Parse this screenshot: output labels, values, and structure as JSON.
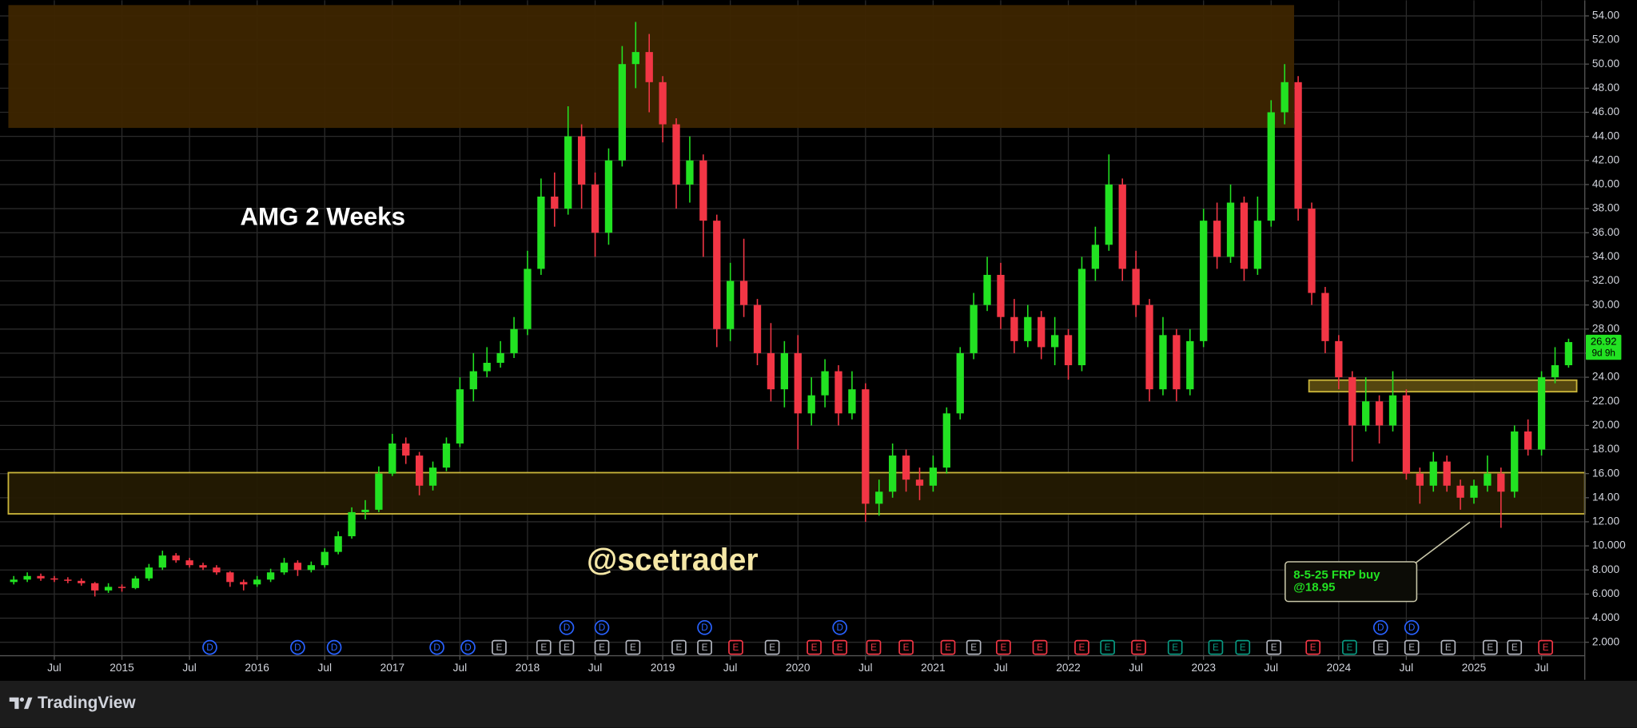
{
  "chart_data": {
    "type": "candlestick",
    "title": "AMG 2 Weeks",
    "watermark": "@scetrader",
    "x": [
      2014.2,
      2014.3,
      2014.4,
      2014.5,
      2014.6,
      2014.7,
      2014.8,
      2014.9,
      2015.0,
      2015.1,
      2015.2,
      2015.3,
      2015.4,
      2015.5,
      2015.6,
      2015.7,
      2015.8,
      2015.9,
      2016.0,
      2016.1,
      2016.2,
      2016.3,
      2016.4,
      2016.5,
      2016.6,
      2016.7,
      2016.8,
      2016.9,
      2017.0,
      2017.1,
      2017.2,
      2017.3,
      2017.4,
      2017.5,
      2017.6,
      2017.7,
      2017.8,
      2017.9,
      2018.0,
      2018.1,
      2018.2,
      2018.3,
      2018.4,
      2018.5,
      2018.6,
      2018.7,
      2018.8,
      2018.9,
      2019.0,
      2019.1,
      2019.2,
      2019.3,
      2019.4,
      2019.5,
      2019.6,
      2019.7,
      2019.8,
      2019.9,
      2020.0,
      2020.1,
      2020.2,
      2020.3,
      2020.4,
      2020.5,
      2020.6,
      2020.7,
      2020.8,
      2020.9,
      2021.0,
      2021.1,
      2021.2,
      2021.3,
      2021.4,
      2021.5,
      2021.6,
      2021.7,
      2021.8,
      2021.9,
      2022.0,
      2022.1,
      2022.2,
      2022.3,
      2022.4,
      2022.5,
      2022.6,
      2022.7,
      2022.8,
      2022.9,
      2023.0,
      2023.1,
      2023.2,
      2023.3,
      2023.4,
      2023.5,
      2023.6,
      2023.7,
      2023.8,
      2023.9,
      2024.0,
      2024.1,
      2024.2,
      2024.3,
      2024.4,
      2024.5,
      2024.6,
      2024.7,
      2024.8,
      2024.9,
      2025.0,
      2025.1,
      2025.2,
      2025.3,
      2025.4,
      2025.5,
      2025.6,
      2025.7
    ],
    "open": [
      7.0,
      7.2,
      7.5,
      7.3,
      7.2,
      7.1,
      6.9,
      6.3,
      6.6,
      6.5,
      7.3,
      8.2,
      9.2,
      8.8,
      8.4,
      8.2,
      7.8,
      7.0,
      6.8,
      7.2,
      7.8,
      8.6,
      8.0,
      8.4,
      9.5,
      10.8,
      12.8,
      13.0,
      16.0,
      18.5,
      17.5,
      15.0,
      16.5,
      18.5,
      23.0,
      24.5,
      25.2,
      26.0,
      28.0,
      33.0,
      39.0,
      38.0,
      44.0,
      40.0,
      36.0,
      42.0,
      50.0,
      51.0,
      48.5,
      45.0,
      40.0,
      42.0,
      37.0,
      28.0,
      32.0,
      30.0,
      26.0,
      23.0,
      26.0,
      21.0,
      22.5,
      24.5,
      21.0,
      23.0,
      13.5,
      14.5,
      17.5,
      15.5,
      15.0,
      16.5,
      21.0,
      26.0,
      30.0,
      32.5,
      29.0,
      27.0,
      29.0,
      26.5,
      27.5,
      25.0,
      33.0,
      35.0,
      40.0,
      33.0,
      30.0,
      23.0,
      27.5,
      23.0,
      27.0,
      37.0,
      34.0,
      38.5,
      33.0,
      37.0,
      46.0,
      48.5,
      38.0,
      31.0,
      27.0,
      24.0,
      20.0,
      22.0,
      20.0,
      22.5,
      16.0,
      15.0,
      17.0,
      15.0,
      14.0,
      15.0,
      16.0,
      14.5,
      19.5,
      18.0,
      24.0,
      25.0
    ],
    "high": [
      7.5,
      7.8,
      7.7,
      7.5,
      7.4,
      7.3,
      7.0,
      6.9,
      6.8,
      7.5,
      8.5,
      9.6,
      9.4,
      9.0,
      8.6,
      8.4,
      7.9,
      7.2,
      7.5,
      8.1,
      9.0,
      8.8,
      8.7,
      9.8,
      11.2,
      13.2,
      13.8,
      16.6,
      19.3,
      19.0,
      17.8,
      17.0,
      19.0,
      24.0,
      26.0,
      26.5,
      27.0,
      29.0,
      34.5,
      40.5,
      41.0,
      46.5,
      45.0,
      41.0,
      43.0,
      51.5,
      53.5,
      52.5,
      49.0,
      45.5,
      44.0,
      42.5,
      37.5,
      33.5,
      35.5,
      30.5,
      28.5,
      27.0,
      27.5,
      24.0,
      25.5,
      25.0,
      24.5,
      23.5,
      15.5,
      18.5,
      18.0,
      16.5,
      17.5,
      21.5,
      26.5,
      31.0,
      34.0,
      33.5,
      30.5,
      30.0,
      29.5,
      29.0,
      28.0,
      34.0,
      36.5,
      42.5,
      40.5,
      34.5,
      30.5,
      29.0,
      28.0,
      28.0,
      38.0,
      38.5,
      40.0,
      39.0,
      39.0,
      47.0,
      50.0,
      49.0,
      38.5,
      31.5,
      27.5,
      24.5,
      24.0,
      22.5,
      24.5,
      23.0,
      16.5,
      17.8,
      17.5,
      15.5,
      15.5,
      17.5,
      16.5,
      20.0,
      20.5,
      24.5,
      26.5,
      27.2
    ],
    "low": [
      6.8,
      7.0,
      7.1,
      7.0,
      6.9,
      6.7,
      5.8,
      6.1,
      6.2,
      6.4,
      7.1,
      8.0,
      8.6,
      8.2,
      8.0,
      7.6,
      6.6,
      6.3,
      6.6,
      7.0,
      7.6,
      7.5,
      7.8,
      8.2,
      9.3,
      10.6,
      12.2,
      12.8,
      15.8,
      16.8,
      14.2,
      14.6,
      16.2,
      18.2,
      22.0,
      24.0,
      24.8,
      25.6,
      27.5,
      32.5,
      36.5,
      37.5,
      38.0,
      34.0,
      35.0,
      41.5,
      48.0,
      46.0,
      43.5,
      38.0,
      38.5,
      34.0,
      26.5,
      27.0,
      29.0,
      25.0,
      22.0,
      21.5,
      18.0,
      20.0,
      21.5,
      20.0,
      20.5,
      12.0,
      12.5,
      14.0,
      14.5,
      13.8,
      14.5,
      16.0,
      20.5,
      25.5,
      29.5,
      28.0,
      26.0,
      26.5,
      25.5,
      25.0,
      23.8,
      24.5,
      32.0,
      34.5,
      32.0,
      29.0,
      22.0,
      22.5,
      22.0,
      22.5,
      26.5,
      33.0,
      33.5,
      32.0,
      32.5,
      36.5,
      45.0,
      37.0,
      30.0,
      26.0,
      23.0,
      17.0,
      19.5,
      18.5,
      19.5,
      15.5,
      13.5,
      14.5,
      14.5,
      13.0,
      13.5,
      14.5,
      11.5,
      14.0,
      17.5,
      17.5,
      23.5,
      24.8
    ],
    "close": [
      7.2,
      7.5,
      7.3,
      7.2,
      7.1,
      6.9,
      6.3,
      6.6,
      6.5,
      7.3,
      8.2,
      9.2,
      8.8,
      8.4,
      8.2,
      7.8,
      7.0,
      6.8,
      7.2,
      7.8,
      8.6,
      8.0,
      8.4,
      9.5,
      10.8,
      12.8,
      13.0,
      16.0,
      18.5,
      17.5,
      15.0,
      16.5,
      18.5,
      23.0,
      24.5,
      25.2,
      26.0,
      28.0,
      33.0,
      39.0,
      38.0,
      44.0,
      40.0,
      36.0,
      42.0,
      50.0,
      51.0,
      48.5,
      45.0,
      40.0,
      42.0,
      37.0,
      28.0,
      32.0,
      30.0,
      26.0,
      23.0,
      26.0,
      21.0,
      22.5,
      24.5,
      21.0,
      23.0,
      13.5,
      14.5,
      17.5,
      15.5,
      15.0,
      16.5,
      21.0,
      26.0,
      30.0,
      32.5,
      29.0,
      27.0,
      29.0,
      26.5,
      27.5,
      25.0,
      33.0,
      35.0,
      40.0,
      33.0,
      30.0,
      23.0,
      27.5,
      23.0,
      27.0,
      37.0,
      34.0,
      38.5,
      33.0,
      37.0,
      46.0,
      48.5,
      38.0,
      31.0,
      27.0,
      24.0,
      20.0,
      22.0,
      20.0,
      22.5,
      16.0,
      15.0,
      17.0,
      15.0,
      14.0,
      15.0,
      16.0,
      14.5,
      19.5,
      18.0,
      24.0,
      25.0,
      26.92
    ],
    "up_color": "#22e222",
    "down_color": "#f23645",
    "countdown": "9d 9h",
    "xlim": [
      2014.16,
      2025.82
    ],
    "xticks": [
      {
        "value": 2014.5,
        "label": "Jul"
      },
      2015,
      {
        "value": 2015.5,
        "label": "Jul"
      },
      2016,
      {
        "value": 2016.5,
        "label": "Jul"
      },
      2017,
      {
        "value": 2017.5,
        "label": "Jul"
      },
      2018,
      {
        "value": 2018.5,
        "label": "Jul"
      },
      2019,
      {
        "value": 2019.5,
        "label": "Jul"
      },
      2020,
      {
        "value": 2020.5,
        "label": "Jul"
      },
      2021,
      {
        "value": 2021.5,
        "label": "Jul"
      },
      2022,
      {
        "value": 2022.5,
        "label": "Jul"
      },
      2023,
      {
        "value": 2023.5,
        "label": "Jul"
      },
      2024,
      {
        "value": 2024.5,
        "label": "Jul"
      },
      2025,
      {
        "value": 2025.5,
        "label": "Jul"
      }
    ],
    "ylim": [
      0.88,
      55.3
    ],
    "yticks": [
      {
        "value": 2,
        "label": "2.000"
      },
      {
        "value": 4,
        "label": "4.000"
      },
      {
        "value": 6,
        "label": "6.000"
      },
      {
        "value": 8,
        "label": "8.000"
      },
      {
        "value": 10,
        "label": "10.000"
      },
      {
        "value": 12,
        "label": "12.00"
      },
      {
        "value": 14,
        "label": "14.00"
      },
      {
        "value": 16,
        "label": "16.00"
      },
      {
        "value": 18,
        "label": "18.00"
      },
      {
        "value": 20,
        "label": "20.00"
      },
      {
        "value": 22,
        "label": "22.00"
      },
      {
        "value": 24,
        "label": "24.00"
      },
      {
        "value": 26,
        "label": "26.00"
      },
      {
        "value": 28,
        "label": "28.00"
      },
      {
        "value": 30,
        "label": "30.00"
      },
      {
        "value": 32,
        "label": "32.00"
      },
      {
        "value": 34,
        "label": "34.00"
      },
      {
        "value": 36,
        "label": "36.00"
      },
      {
        "value": 38,
        "label": "38.00"
      },
      {
        "value": 40,
        "label": "40.00"
      },
      {
        "value": 42,
        "label": "42.00"
      },
      {
        "value": 44,
        "label": "44.00"
      },
      {
        "value": 46,
        "label": "46.00"
      },
      {
        "value": 48,
        "label": "48.00"
      },
      {
        "value": 50,
        "label": "50.00"
      },
      {
        "value": 52,
        "label": "52.00"
      },
      {
        "value": 54,
        "label": "54.00"
      }
    ],
    "grid": true,
    "zones": [
      {
        "x": [
          2014.16,
          2023.67
        ],
        "y": [
          44.7,
          54.9
        ],
        "fill": "#3d2500",
        "stroke": "none"
      },
      {
        "x": [
          2014.16,
          2025.82
        ],
        "y": [
          12.66,
          16.08
        ],
        "fill": "#241a02",
        "stroke": "#c9b53a"
      },
      {
        "x": [
          2023.78,
          2025.76
        ],
        "y": [
          22.8,
          23.76
        ],
        "fill": "#5a4a10",
        "stroke": "#c9b53a"
      }
    ],
    "callout": {
      "lines": [
        "8-5-25 FRP buy",
        "@18.95"
      ],
      "color": "#22e222"
    },
    "events": [
      {
        "date": 2015.65,
        "label": "D",
        "color": "#2962ff"
      },
      {
        "date": 2016.3,
        "label": "D",
        "color": "#2962ff"
      },
      {
        "date": 2016.57,
        "label": "D",
        "color": "#2962ff"
      },
      {
        "date": 2017.33,
        "label": "D",
        "color": "#2962ff"
      },
      {
        "date": 2017.56,
        "label": "D",
        "color": "#2962ff"
      },
      {
        "date": 2017.79,
        "label": "E",
        "color": "#b2b5be"
      },
      {
        "date": 2018.12,
        "label": "E",
        "color": "#b2b5be"
      },
      {
        "date": 2018.29,
        "label": "E",
        "color": "#b2b5be"
      },
      {
        "date": 2018.29,
        "label": "D",
        "color": "#2962ff"
      },
      {
        "date": 2018.55,
        "label": "E",
        "color": "#b2b5be"
      },
      {
        "date": 2018.55,
        "label": "D",
        "color": "#2962ff"
      },
      {
        "date": 2018.78,
        "label": "E",
        "color": "#b2b5be"
      },
      {
        "date": 2019.12,
        "label": "E",
        "color": "#b2b5be"
      },
      {
        "date": 2019.31,
        "label": "E",
        "color": "#b2b5be"
      },
      {
        "date": 2019.31,
        "label": "D",
        "color": "#2962ff"
      },
      {
        "date": 2019.54,
        "label": "E",
        "color": "#f23645"
      },
      {
        "date": 2019.81,
        "label": "E",
        "color": "#b2b5be"
      },
      {
        "date": 2020.12,
        "label": "E",
        "color": "#f23645"
      },
      {
        "date": 2020.31,
        "label": "E",
        "color": "#f23645"
      },
      {
        "date": 2020.31,
        "label": "D",
        "color": "#2962ff"
      },
      {
        "date": 2020.56,
        "label": "E",
        "color": "#f23645"
      },
      {
        "date": 2020.8,
        "label": "E",
        "color": "#f23645"
      },
      {
        "date": 2021.11,
        "label": "E",
        "color": "#f23645"
      },
      {
        "date": 2021.3,
        "label": "E",
        "color": "#b2b5be"
      },
      {
        "date": 2021.52,
        "label": "E",
        "color": "#f23645"
      },
      {
        "date": 2021.79,
        "label": "E",
        "color": "#f23645"
      },
      {
        "date": 2022.1,
        "label": "E",
        "color": "#f23645"
      },
      {
        "date": 2022.29,
        "label": "E",
        "color": "#089981"
      },
      {
        "date": 2022.52,
        "label": "E",
        "color": "#f23645"
      },
      {
        "date": 2022.79,
        "label": "E",
        "color": "#089981"
      },
      {
        "date": 2023.09,
        "label": "E",
        "color": "#089981"
      },
      {
        "date": 2023.29,
        "label": "E",
        "color": "#089981"
      },
      {
        "date": 2023.52,
        "label": "E",
        "color": "#b2b5be"
      },
      {
        "date": 2023.81,
        "label": "E",
        "color": "#f23645"
      },
      {
        "date": 2024.08,
        "label": "E",
        "color": "#089981"
      },
      {
        "date": 2024.31,
        "label": "E",
        "color": "#b2b5be"
      },
      {
        "date": 2024.31,
        "label": "D",
        "color": "#2962ff"
      },
      {
        "date": 2024.54,
        "label": "E",
        "color": "#b2b5be"
      },
      {
        "date": 2024.54,
        "label": "D",
        "color": "#2962ff"
      },
      {
        "date": 2024.81,
        "label": "E",
        "color": "#b2b5be"
      },
      {
        "date": 2025.12,
        "label": "E",
        "color": "#b2b5be"
      },
      {
        "date": 2025.3,
        "label": "E",
        "color": "#b2b5be"
      },
      {
        "date": 2025.53,
        "label": "E",
        "color": "#f23645"
      }
    ]
  },
  "footer": {
    "brand": "TradingView"
  }
}
